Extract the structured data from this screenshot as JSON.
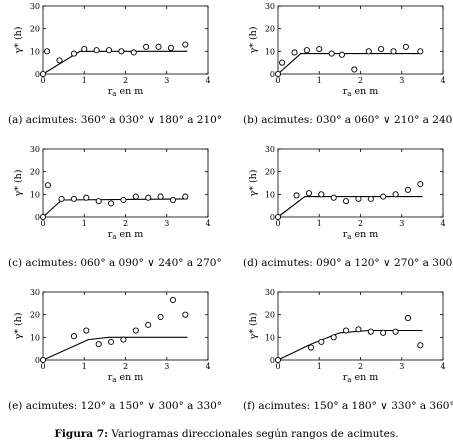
{
  "figure_caption": {
    "label": "Figura 7:",
    "text": "Variogramas direccionales según rangos de acimutes."
  },
  "chart_data": [
    {
      "type": "scatter",
      "caption": "(a) acimutes: 360° a 030° ∨ 180° a 210°",
      "xlabel": "r",
      "xlabel_sub": "a",
      "xlabel_unit": " en m",
      "ylabel": "γ* (h)",
      "xlim": [
        0,
        4
      ],
      "ylim": [
        0,
        30
      ],
      "xticks": [
        0,
        1,
        2,
        3,
        4
      ],
      "yticks": [
        0,
        10,
        20,
        30
      ],
      "points": [
        [
          0,
          0
        ],
        [
          0.4,
          6
        ],
        [
          0.75,
          9
        ],
        [
          1.0,
          11
        ],
        [
          1.3,
          10.5
        ],
        [
          1.6,
          10.5
        ],
        [
          1.9,
          10
        ],
        [
          2.2,
          9.5
        ],
        [
          2.5,
          12
        ],
        [
          2.8,
          12
        ],
        [
          3.1,
          11.5
        ],
        [
          3.45,
          13
        ],
        [
          0.1,
          10
        ]
      ],
      "model": [
        [
          0,
          0
        ],
        [
          0.9,
          10
        ],
        [
          3.5,
          10
        ]
      ]
    },
    {
      "type": "scatter",
      "caption": "(b) acimutes: 030° a 060° ∨ 210° a 240°",
      "xlabel": "r",
      "xlabel_sub": "a",
      "xlabel_unit": " en m",
      "ylabel": "γ* (h)",
      "xlim": [
        0,
        4
      ],
      "ylim": [
        0,
        30
      ],
      "xticks": [
        0,
        1,
        2,
        3,
        4
      ],
      "yticks": [
        0,
        10,
        20,
        30
      ],
      "points": [
        [
          0,
          0
        ],
        [
          0.1,
          5
        ],
        [
          0.4,
          9.5
        ],
        [
          0.7,
          10.5
        ],
        [
          1.0,
          11
        ],
        [
          1.3,
          9
        ],
        [
          1.55,
          8.5
        ],
        [
          1.85,
          2
        ],
        [
          2.2,
          10
        ],
        [
          2.5,
          11
        ],
        [
          2.8,
          10
        ],
        [
          3.1,
          12
        ],
        [
          3.45,
          10
        ]
      ],
      "model": [
        [
          0,
          0
        ],
        [
          0.55,
          9
        ],
        [
          3.5,
          9
        ]
      ]
    },
    {
      "type": "scatter",
      "caption": "(c) acimutes: 060° a 090° ∨ 240° a 270°",
      "xlabel": "r",
      "xlabel_sub": "a",
      "xlabel_unit": " en m",
      "ylabel": "γ* (h)",
      "xlim": [
        0,
        4
      ],
      "ylim": [
        0,
        30
      ],
      "xticks": [
        0,
        1,
        2,
        3,
        4
      ],
      "yticks": [
        0,
        10,
        20,
        30
      ],
      "points": [
        [
          0,
          0
        ],
        [
          0.12,
          14
        ],
        [
          0.45,
          8
        ],
        [
          0.75,
          8
        ],
        [
          1.05,
          8.5
        ],
        [
          1.35,
          7
        ],
        [
          1.65,
          6
        ],
        [
          1.95,
          7.5
        ],
        [
          2.25,
          9
        ],
        [
          2.55,
          8.5
        ],
        [
          2.85,
          9
        ],
        [
          3.15,
          7.5
        ],
        [
          3.45,
          9
        ]
      ],
      "model": [
        [
          0,
          0
        ],
        [
          0.45,
          7.5
        ],
        [
          3.5,
          8
        ]
      ]
    },
    {
      "type": "scatter",
      "caption": "(d) acimutes: 090° a 120° ∨ 270° a 300°",
      "xlabel": "r",
      "xlabel_sub": "a",
      "xlabel_unit": " en m",
      "ylabel": "γ* (h)",
      "xlim": [
        0,
        4
      ],
      "ylim": [
        0,
        30
      ],
      "xticks": [
        0,
        1,
        2,
        3,
        4
      ],
      "yticks": [
        0,
        10,
        20,
        30
      ],
      "points": [
        [
          0,
          0
        ],
        [
          0.45,
          9.5
        ],
        [
          0.75,
          10.5
        ],
        [
          1.05,
          10
        ],
        [
          1.35,
          8.5
        ],
        [
          1.65,
          7
        ],
        [
          1.95,
          8
        ],
        [
          2.25,
          8
        ],
        [
          2.55,
          9
        ],
        [
          2.85,
          10
        ],
        [
          3.15,
          12
        ],
        [
          3.45,
          14.5
        ]
      ],
      "model": [
        [
          0,
          0
        ],
        [
          0.65,
          9
        ],
        [
          3.5,
          9
        ]
      ]
    },
    {
      "type": "scatter",
      "caption": "(e) acimutes: 120° a 150° ∨ 300° a 330°",
      "xlabel": "r",
      "xlabel_sub": "a",
      "xlabel_unit": " en m",
      "ylabel": "γ* (h)",
      "xlim": [
        0,
        4
      ],
      "ylim": [
        0,
        30
      ],
      "xticks": [
        0,
        1,
        2,
        3,
        4
      ],
      "yticks": [
        0,
        10,
        20,
        30
      ],
      "points": [
        [
          0,
          0
        ],
        [
          0.75,
          10.5
        ],
        [
          1.05,
          13
        ],
        [
          1.35,
          7
        ],
        [
          1.65,
          8
        ],
        [
          1.95,
          9
        ],
        [
          2.25,
          13
        ],
        [
          2.55,
          15.5
        ],
        [
          2.85,
          19
        ],
        [
          3.15,
          26.5
        ],
        [
          3.45,
          20
        ]
      ],
      "model": [
        [
          0,
          0
        ],
        [
          1.1,
          9
        ],
        [
          1.6,
          10
        ],
        [
          3.5,
          10
        ]
      ]
    },
    {
      "type": "scatter",
      "caption": "(f) acimutes: 150° a 180° ∨ 330° a 360°",
      "xlabel": "r",
      "xlabel_sub": "a",
      "xlabel_unit": " en m",
      "ylabel": "γ* (h)",
      "xlim": [
        0,
        4
      ],
      "ylim": [
        0,
        30
      ],
      "xticks": [
        0,
        1,
        2,
        3,
        4
      ],
      "yticks": [
        0,
        10,
        20,
        30
      ],
      "points": [
        [
          0,
          0
        ],
        [
          0.8,
          5.5
        ],
        [
          1.05,
          8
        ],
        [
          1.35,
          10
        ],
        [
          1.65,
          13
        ],
        [
          1.95,
          13.5
        ],
        [
          2.25,
          12.5
        ],
        [
          2.55,
          12
        ],
        [
          2.85,
          12.5
        ],
        [
          3.15,
          18.5
        ],
        [
          3.45,
          6.5
        ]
      ],
      "model": [
        [
          0,
          0
        ],
        [
          0.8,
          7
        ],
        [
          1.5,
          12
        ],
        [
          2.2,
          13
        ],
        [
          3.5,
          13
        ]
      ]
    }
  ]
}
